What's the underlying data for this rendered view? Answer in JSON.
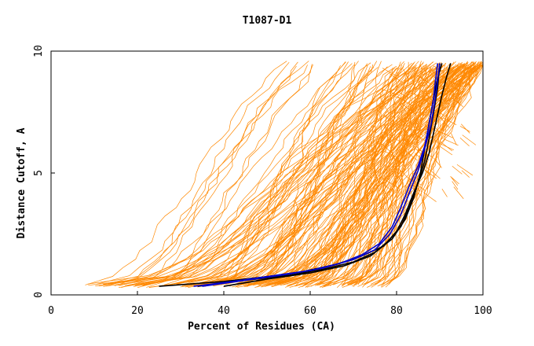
{
  "chart_data": {
    "type": "line",
    "title": "T1087-D1",
    "xlabel": "Percent of Residues (CA)",
    "ylabel": "Distance Cutoff, A",
    "xlim": [
      0,
      100
    ],
    "ylim": [
      0,
      10
    ],
    "x_ticks": [
      "0",
      "20",
      "40",
      "60",
      "80",
      "100"
    ],
    "x_tick_values": [
      0,
      20,
      40,
      60,
      80,
      100
    ],
    "y_ticks": [
      "0",
      "5",
      "10"
    ],
    "y_tick_values": [
      0,
      5,
      10
    ],
    "grid": false,
    "legend": "none",
    "background_color": "#ffffff",
    "highlight_color_dark": "#000000",
    "highlight_color_blue": "#0000cc",
    "series": [
      {
        "color": "#000000",
        "x": [
          25,
          40,
          50,
          58,
          66,
          72,
          77,
          80,
          82,
          84,
          86,
          87.5,
          88.5,
          89.5,
          90.5,
          91.5,
          92.5
        ],
        "y": [
          0.35,
          0.55,
          0.75,
          0.95,
          1.25,
          1.6,
          2.0,
          2.6,
          3.3,
          4.2,
          5.0,
          5.8,
          6.6,
          7.4,
          8.2,
          8.9,
          9.5
        ]
      },
      {
        "color": "#000000",
        "x": [
          34,
          45,
          55,
          63,
          70,
          75,
          78,
          81,
          83,
          85,
          86.5,
          87.5,
          88.5,
          89.5,
          90
        ],
        "y": [
          0.35,
          0.6,
          0.8,
          1.05,
          1.35,
          1.75,
          2.2,
          2.8,
          3.6,
          4.6,
          5.5,
          6.4,
          7.4,
          8.5,
          9.5
        ]
      },
      {
        "color": "#000000",
        "x": [
          40,
          50,
          60,
          68,
          74,
          79,
          82,
          84,
          85.5,
          86.5,
          87.5,
          88.5,
          89.5,
          90.5
        ],
        "y": [
          0.35,
          0.65,
          0.9,
          1.2,
          1.6,
          2.3,
          3.1,
          4.0,
          5.0,
          6.0,
          7.0,
          8.0,
          8.9,
          9.5
        ]
      },
      {
        "color": "#0000cc",
        "x": [
          33,
          42,
          52,
          60,
          67,
          72,
          76,
          79,
          81,
          83,
          85,
          86.5,
          87.5,
          88.5,
          89,
          89.5
        ],
        "y": [
          0.35,
          0.55,
          0.8,
          1.0,
          1.3,
          1.65,
          2.1,
          2.8,
          3.6,
          4.5,
          5.3,
          6.1,
          7.0,
          8.0,
          8.8,
          9.5
        ]
      },
      {
        "color": "#0000cc",
        "x": [
          35,
          45,
          55,
          63,
          70,
          75,
          78.5,
          81,
          83,
          85,
          86.5,
          88,
          89,
          90
        ],
        "y": [
          0.35,
          0.6,
          0.85,
          1.1,
          1.45,
          1.85,
          2.5,
          3.3,
          4.2,
          5.1,
          6.0,
          7.0,
          8.1,
          9.5
        ]
      }
    ],
    "background_series_color": "#ff8800",
    "background_series_count": 170
  }
}
